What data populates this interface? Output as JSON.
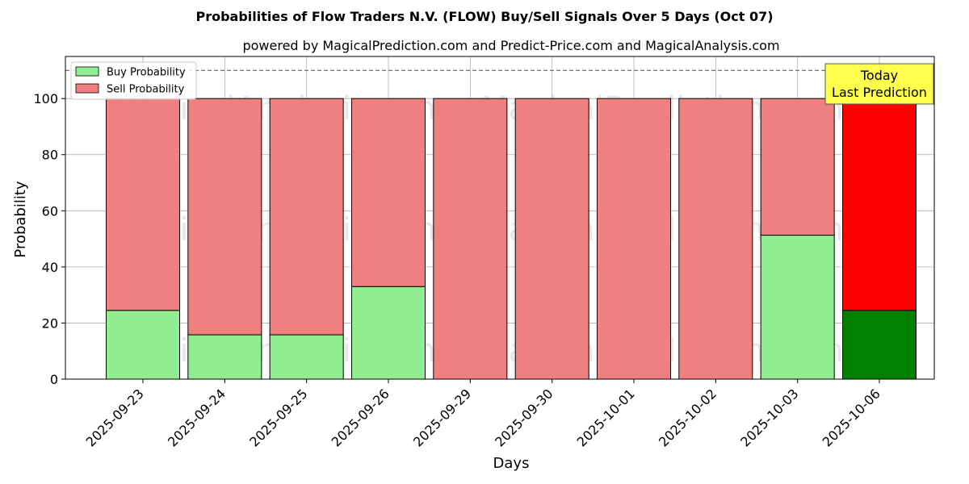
{
  "chart_data": {
    "type": "bar",
    "stacked": true,
    "title": "Probabilities of Flow Traders N.V. (FLOW) Buy/Sell Signals Over 5 Days (Oct 07)",
    "subtitle": "powered by MagicalPrediction.com and Predict-Price.com and MagicalAnalysis.com",
    "xlabel": "Days",
    "ylabel": "Probability",
    "ylim": [
      0,
      115
    ],
    "yticks": [
      0,
      20,
      40,
      60,
      80,
      100
    ],
    "grid": true,
    "legend_position": "top-left",
    "reference_line": 110,
    "categories": [
      "2025-09-23",
      "2025-09-24",
      "2025-09-25",
      "2025-09-26",
      "2025-09-29",
      "2025-09-30",
      "2025-10-01",
      "2025-10-02",
      "2025-10-03",
      "2025-10-06"
    ],
    "series": [
      {
        "name": "Buy Probability",
        "color": "#90ee90",
        "highlight_color": "#008000",
        "values": [
          24.5,
          15.8,
          15.8,
          33.0,
          0,
          0,
          0,
          0,
          51.3,
          24.5
        ]
      },
      {
        "name": "Sell Probability",
        "color": "#f08080",
        "highlight_color": "#ff0000",
        "values": [
          75.5,
          84.2,
          84.2,
          67.0,
          100,
          100,
          100,
          100,
          48.7,
          75.5
        ]
      }
    ],
    "highlight_index": 9,
    "annotation": {
      "line1": "Today",
      "line2": "Last Prediction",
      "background": "#ffff4d"
    },
    "watermarks": [
      "MagicalAnalysis.com",
      "MagicalPrediction.com"
    ]
  }
}
